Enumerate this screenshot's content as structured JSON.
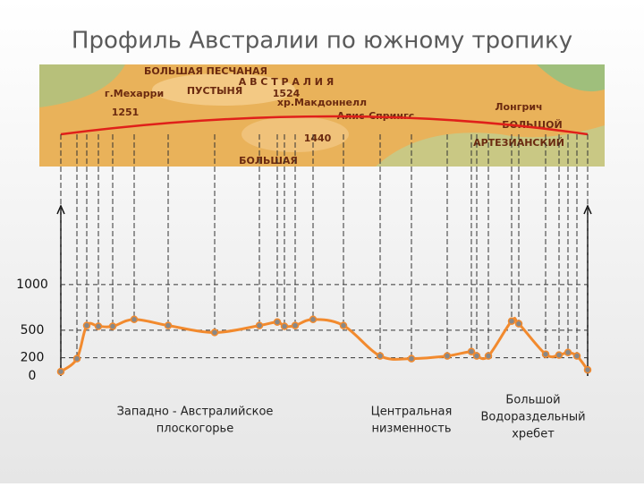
{
  "chart_data": {
    "type": "line",
    "title": "Профиль Австралии по южному тропику",
    "map_labels": [
      "БОЛЬШАЯ ПЕСЧАНАЯ",
      "А В С Т Р А Л И Я",
      "ПУСТЫНЯ",
      "1524",
      "г.Мехарри",
      "1251",
      "хр.Макдоннелл",
      "Алис-Спрингс",
      "1440",
      "БОЛЬШАЯ",
      "Лонгрич",
      "БОЛЬШОЙ",
      "АРТЕЗИАНСКИЙ"
    ],
    "x": [
      0,
      18,
      29,
      42,
      58,
      82,
      120,
      172,
      222,
      242,
      250,
      262,
      282,
      316,
      357,
      392,
      432,
      459,
      465,
      478,
      504,
      512,
      542,
      557,
      567,
      577,
      589
    ],
    "series": [
      {
        "name": "Профиль",
        "color": "#f28a2e",
        "values": [
          48,
          190,
          552,
          543,
          543,
          619,
          552,
          476,
          552,
          590,
          543,
          552,
          619,
          552,
          219,
          190,
          219,
          267,
          219,
          219,
          600,
          571,
          238,
          229,
          257,
          219,
          67
        ]
      }
    ],
    "xlim": [
      0,
      589
    ],
    "ylim": [
      0,
      1860
    ],
    "yticks": [
      0,
      200,
      500,
      1000
    ],
    "grid": true,
    "regions": [
      {
        "lines": [
          "Западно - Австралийское",
          "плоскогорье"
        ],
        "x": 150
      },
      {
        "lines": [
          "Центральная",
          "низменность"
        ],
        "x": 392
      },
      {
        "lines": [
          "Большой",
          "Водораздельный",
          "хребет"
        ],
        "x": 528
      }
    ]
  }
}
